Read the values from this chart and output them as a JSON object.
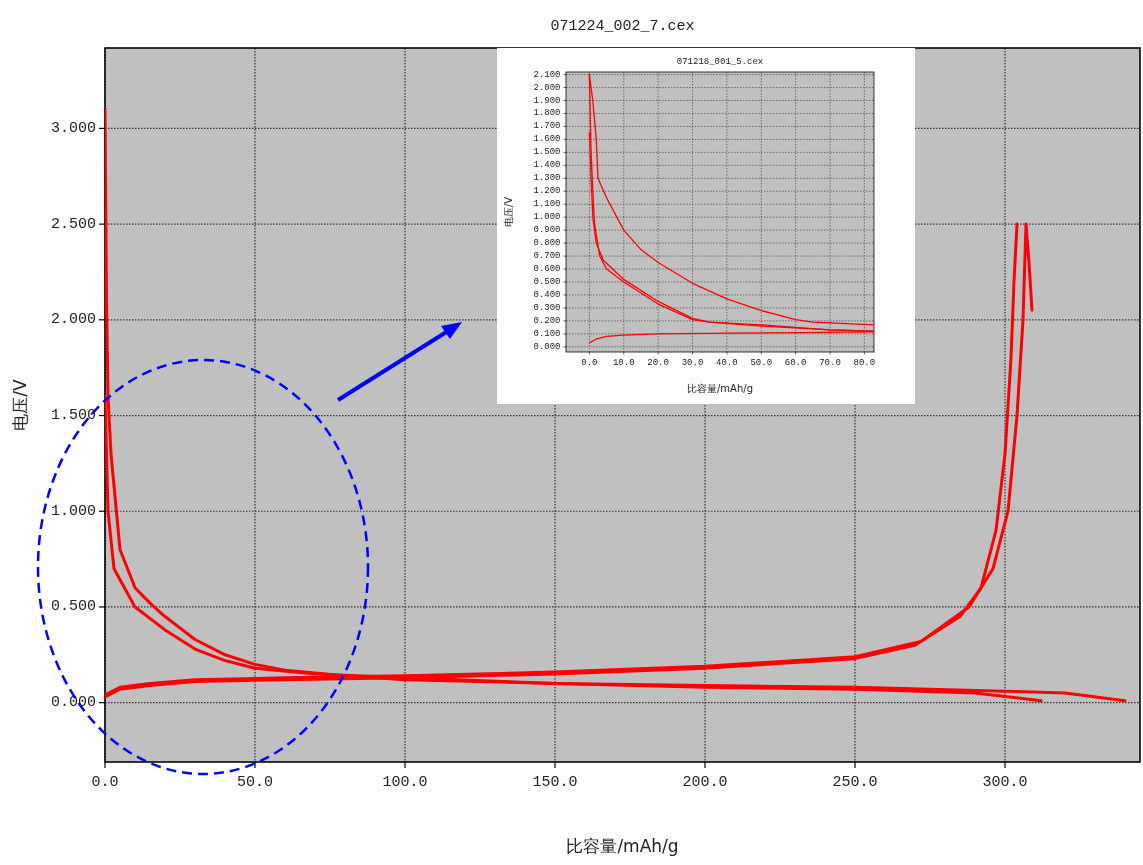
{
  "chart_data": [
    {
      "type": "line",
      "title": "071224_002_7.cex",
      "xlabel": "比容量/mAh/g",
      "ylabel": "电压/V",
      "xlim": [
        0,
        345
      ],
      "ylim": [
        -0.31,
        3.42
      ],
      "xticks": [
        {
          "value": 0,
          "label": "0.0"
        },
        {
          "value": 50,
          "label": "50.0"
        },
        {
          "value": 100,
          "label": "100.0"
        },
        {
          "value": 150,
          "label": "150.0"
        },
        {
          "value": 200,
          "label": "200.0"
        },
        {
          "value": 250,
          "label": "250.0"
        },
        {
          "value": 300,
          "label": "300.0"
        }
      ],
      "yticks": [
        {
          "value": 0,
          "label": "0.000"
        },
        {
          "value": 0.5,
          "label": "0.500"
        },
        {
          "value": 1,
          "label": "1.000"
        },
        {
          "value": 1.5,
          "label": "1.500"
        },
        {
          "value": 2,
          "label": "2.000"
        },
        {
          "value": 2.5,
          "label": "2.500"
        },
        {
          "value": 3,
          "label": "3.000"
        }
      ],
      "grid": true,
      "marker": "none",
      "line_style": "solid",
      "series": [
        {
          "color": "#ff0000",
          "x": [
            0,
            0.5,
            1,
            2,
            5,
            10,
            15,
            20,
            30,
            40,
            50,
            60,
            80,
            100,
            150,
            200,
            250,
            300,
            320,
            340
          ],
          "values": [
            3.1,
            2.1,
            1.6,
            1.3,
            0.8,
            0.6,
            0.52,
            0.45,
            0.33,
            0.25,
            0.2,
            0.17,
            0.14,
            0.12,
            0.1,
            0.09,
            0.08,
            0.06,
            0.05,
            0.01
          ]
        },
        {
          "color": "#ff0000",
          "x": [
            0,
            1,
            3,
            10,
            20,
            30,
            40,
            50,
            70,
            100,
            150,
            200,
            250,
            290,
            312
          ],
          "values": [
            1.6,
            1.0,
            0.7,
            0.5,
            0.38,
            0.28,
            0.22,
            0.18,
            0.15,
            0.13,
            0.1,
            0.08,
            0.07,
            0.05,
            0.01
          ]
        },
        {
          "color": "#ff0000",
          "x": [
            0,
            5,
            15,
            30,
            60,
            100,
            150,
            200,
            250,
            270,
            285,
            292,
            297,
            300,
            302,
            303,
            304
          ],
          "values": [
            0.03,
            0.07,
            0.09,
            0.11,
            0.12,
            0.13,
            0.15,
            0.18,
            0.23,
            0.3,
            0.45,
            0.6,
            0.9,
            1.3,
            1.8,
            2.2,
            2.5
          ]
        },
        {
          "color": "#ff0000",
          "x": [
            0,
            5,
            15,
            30,
            60,
            100,
            150,
            200,
            250,
            272,
            288,
            296,
            301,
            304,
            306,
            307,
            308,
            309
          ],
          "values": [
            0.04,
            0.08,
            0.1,
            0.12,
            0.13,
            0.14,
            0.16,
            0.19,
            0.24,
            0.32,
            0.5,
            0.7,
            1.0,
            1.5,
            2.0,
            2.5,
            2.3,
            2.05
          ]
        }
      ]
    },
    {
      "type": "line",
      "title": "071218_001_5.cex",
      "xlabel": "比容量/mAh/g",
      "ylabel": "电压/V",
      "xlim": [
        -6.8,
        82.8
      ],
      "ylim": [
        -0.04,
        2.12
      ],
      "xticks": [
        {
          "value": 0,
          "label": "0.0"
        },
        {
          "value": 10,
          "label": "10.0"
        },
        {
          "value": 20,
          "label": "20.0"
        },
        {
          "value": 30,
          "label": "30.0"
        },
        {
          "value": 40,
          "label": "40.0"
        },
        {
          "value": 50,
          "label": "50.0"
        },
        {
          "value": 60,
          "label": "60.0"
        },
        {
          "value": 70,
          "label": "70.0"
        },
        {
          "value": 80,
          "label": "80.0"
        }
      ],
      "yticks": [
        {
          "value": 0,
          "label": "0.000"
        },
        {
          "value": 0.1,
          "label": "0.100"
        },
        {
          "value": 0.2,
          "label": "0.200"
        },
        {
          "value": 0.3,
          "label": "0.300"
        },
        {
          "value": 0.4,
          "label": "0.400"
        },
        {
          "value": 0.5,
          "label": "0.500"
        },
        {
          "value": 0.6,
          "label": "0.600"
        },
        {
          "value": 0.7,
          "label": "0.700"
        },
        {
          "value": 0.8,
          "label": "0.800"
        },
        {
          "value": 0.9,
          "label": "0.900"
        },
        {
          "value": 1,
          "label": "1.000"
        },
        {
          "value": 1.1,
          "label": "1.100"
        },
        {
          "value": 1.2,
          "label": "1.200"
        },
        {
          "value": 1.3,
          "label": "1.300"
        },
        {
          "value": 1.4,
          "label": "1.400"
        },
        {
          "value": 1.5,
          "label": "1.500"
        },
        {
          "value": 1.6,
          "label": "1.600"
        },
        {
          "value": 1.7,
          "label": "1.700"
        },
        {
          "value": 1.8,
          "label": "1.800"
        },
        {
          "value": 1.9,
          "label": "1.900"
        },
        {
          "value": 2,
          "label": "2.000"
        },
        {
          "value": 2.1,
          "label": "2.100"
        }
      ],
      "grid": true,
      "marker": "none",
      "line_style": "solid",
      "series": [
        {
          "color": "#ff0000",
          "x": [
            0,
            1,
            2,
            2.5,
            5,
            10,
            15,
            20,
            30,
            40,
            50,
            60,
            65,
            70,
            82.8
          ],
          "values": [
            2.1,
            1.9,
            1.6,
            1.3,
            1.15,
            0.9,
            0.75,
            0.65,
            0.49,
            0.37,
            0.28,
            0.21,
            0.19,
            0.185,
            0.17
          ]
        },
        {
          "color": "#ff0000",
          "x": [
            0,
            0.5,
            1,
            1.5,
            3,
            5,
            10,
            20,
            30,
            35,
            50,
            70,
            82.8
          ],
          "values": [
            2.1,
            1.5,
            1.2,
            0.95,
            0.7,
            0.6,
            0.5,
            0.33,
            0.21,
            0.19,
            0.17,
            0.13,
            0.12
          ]
        },
        {
          "color": "#ff0000",
          "x": [
            0,
            0.5,
            1,
            2,
            4,
            10,
            20,
            30,
            35,
            50,
            70,
            82.8
          ],
          "values": [
            1.65,
            1.3,
            1.0,
            0.8,
            0.67,
            0.52,
            0.35,
            0.22,
            0.19,
            0.16,
            0.13,
            0.12
          ]
        },
        {
          "color": "#ff0000",
          "x": [
            0,
            2,
            5,
            10,
            20,
            40,
            60,
            82.8
          ],
          "values": [
            0.03,
            0.06,
            0.08,
            0.09,
            0.1,
            0.105,
            0.11,
            0.115
          ]
        }
      ]
    }
  ]
}
